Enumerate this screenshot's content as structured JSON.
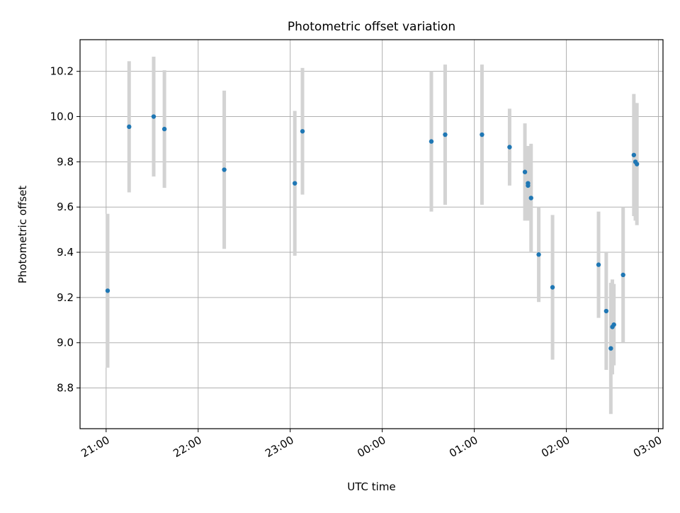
{
  "chart_data": {
    "type": "scatter",
    "title": "Photometric offset variation",
    "xlabel": "UTC time",
    "ylabel": "Photometric offset",
    "x_tick_labels": [
      "21:00",
      "22:00",
      "23:00",
      "00:00",
      "01:00",
      "02:00",
      "03:00"
    ],
    "y_tick_labels": [
      "8.8",
      "9.0",
      "9.2",
      "9.4",
      "9.6",
      "9.8",
      "10.0",
      "10.2"
    ],
    "xlim": [
      "20:43",
      "03:03"
    ],
    "ylim": [
      8.62,
      10.34
    ],
    "grid": true,
    "series": [
      {
        "marker_color": "#1f77b4",
        "errorbar_color": "#d3d3d3",
        "points": [
          {
            "t": "21:01",
            "y": 9.23,
            "err": 0.34
          },
          {
            "t": "21:15",
            "y": 9.955,
            "err": 0.29
          },
          {
            "t": "21:31",
            "y": 10.0,
            "err": 0.265
          },
          {
            "t": "21:38",
            "y": 9.945,
            "err": 0.26
          },
          {
            "t": "22:17",
            "y": 9.765,
            "err": 0.35
          },
          {
            "t": "23:03",
            "y": 9.705,
            "err": 0.32
          },
          {
            "t": "23:08",
            "y": 9.935,
            "err": 0.28
          },
          {
            "t": "00:32",
            "y": 9.89,
            "err": 0.31
          },
          {
            "t": "00:41",
            "y": 9.92,
            "err": 0.31
          },
          {
            "t": "01:05",
            "y": 9.92,
            "err": 0.31
          },
          {
            "t": "01:23",
            "y": 9.865,
            "err": 0.17
          },
          {
            "t": "01:33",
            "y": 9.755,
            "err": 0.215
          },
          {
            "t": "01:35",
            "y": 9.705,
            "err": 0.165
          },
          {
            "t": "01:35",
            "y": 9.695,
            "err": 0.15
          },
          {
            "t": "01:37",
            "y": 9.64,
            "err": 0.24
          },
          {
            "t": "01:42",
            "y": 9.39,
            "err": 0.21
          },
          {
            "t": "01:51",
            "y": 9.245,
            "err": 0.32
          },
          {
            "t": "02:21",
            "y": 9.345,
            "err": 0.235
          },
          {
            "t": "02:26",
            "y": 9.14,
            "err": 0.26
          },
          {
            "t": "02:29",
            "y": 8.975,
            "err": 0.29
          },
          {
            "t": "02:30",
            "y": 9.07,
            "err": 0.21
          },
          {
            "t": "02:31",
            "y": 9.08,
            "err": 0.18
          },
          {
            "t": "02:37",
            "y": 9.3,
            "err": 0.3
          },
          {
            "t": "02:44",
            "y": 9.83,
            "err": 0.27
          },
          {
            "t": "02:45",
            "y": 9.8,
            "err": 0.26
          },
          {
            "t": "02:46",
            "y": 9.79,
            "err": 0.27
          }
        ]
      }
    ]
  }
}
